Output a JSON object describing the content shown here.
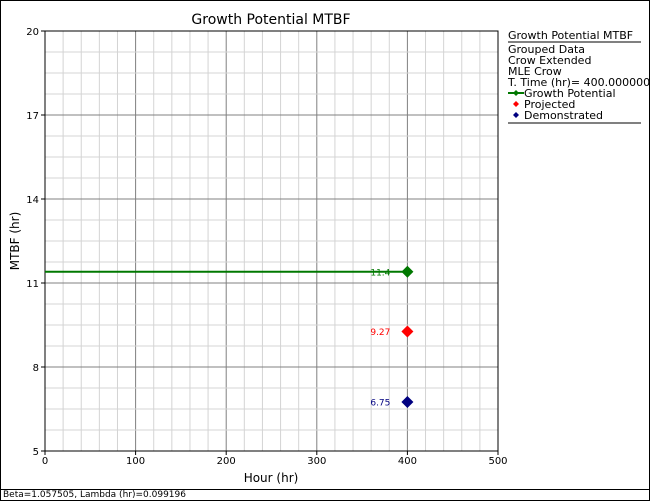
{
  "chart_data": {
    "type": "line",
    "title": "Growth Potential MTBF",
    "xlabel": "Hour (hr)",
    "ylabel": "MTBF (hr)",
    "xlim": [
      0,
      500
    ],
    "ylim": [
      5,
      20
    ],
    "x_ticks": [
      0,
      100,
      200,
      300,
      400,
      500
    ],
    "y_ticks": [
      5,
      8,
      11,
      14,
      17,
      20
    ],
    "grid": true,
    "legend": {
      "position": "right",
      "title": "Growth Potential MTBF",
      "info_lines": [
        "Grouped Data",
        "Crow Extended",
        "MLE Crow",
        "T. Time (hr)= 400.000000"
      ],
      "entries": [
        {
          "name": "Growth Potential",
          "color": "#007800",
          "marker": "line-diamond"
        },
        {
          "name": "Projected",
          "color": "#ff0000",
          "marker": "diamond"
        },
        {
          "name": "Demonstrated",
          "color": "#000080",
          "marker": "diamond"
        }
      ]
    },
    "series": [
      {
        "name": "Growth Potential",
        "color": "#007800",
        "x": [
          0,
          400
        ],
        "y": [
          11.4,
          11.4
        ],
        "label": "11.4",
        "label_x": 400
      },
      {
        "name": "Projected",
        "color": "#ff0000",
        "x": [
          400
        ],
        "y": [
          9.27
        ],
        "label": "9.27",
        "label_x": 400
      },
      {
        "name": "Demonstrated",
        "color": "#000080",
        "x": [
          400
        ],
        "y": [
          6.75
        ],
        "label": "6.75",
        "label_x": 400
      }
    ],
    "footer": "Beta=1.057505, Lambda (hr)=0.099196"
  }
}
